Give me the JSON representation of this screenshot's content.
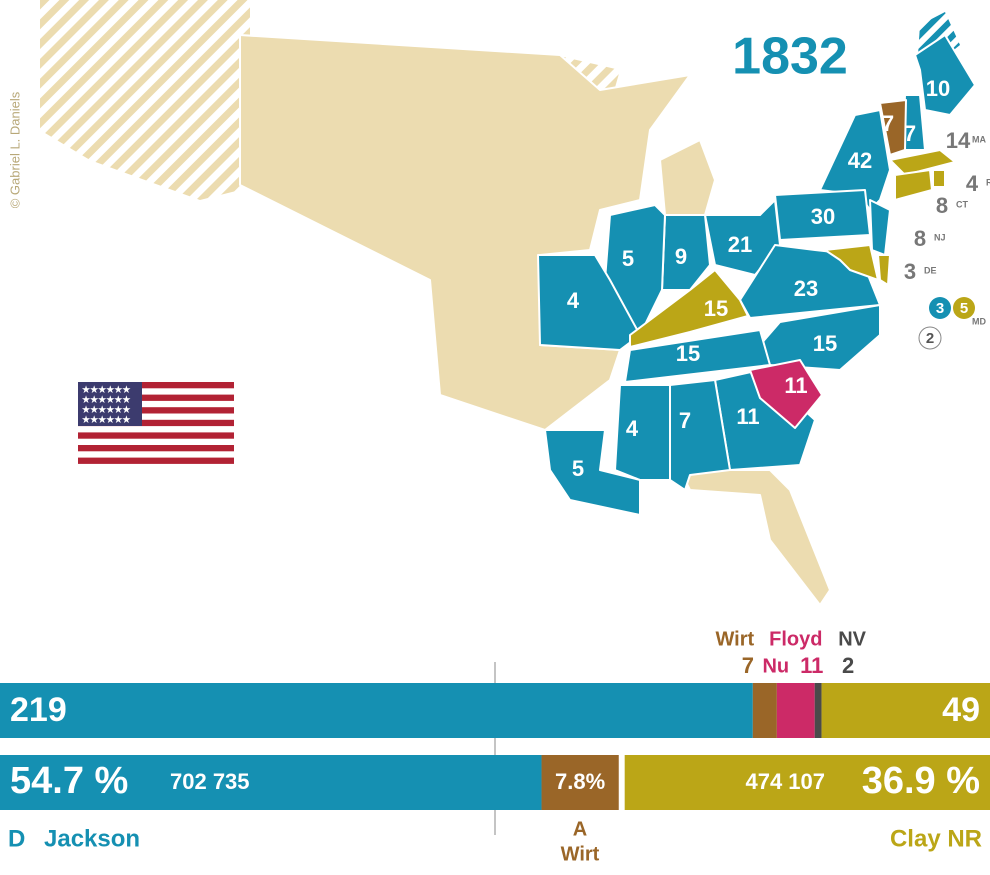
{
  "watermark": "© Gabriel L. Daniels",
  "year": "1832",
  "colors": {
    "jackson": "#1590b2",
    "clay": "#bba617",
    "wirt": "#9a6628",
    "floyd": "#cc2a67",
    "nv": "#4a4a4a",
    "territory": "#ecdcb0"
  },
  "states": [
    {
      "votes": 10,
      "party": "jackson"
    },
    {
      "votes": 7,
      "party": "wirt"
    },
    {
      "votes": 7,
      "party": "jackson"
    },
    {
      "votes": 14,
      "party": "clay",
      "abbr": "MA"
    },
    {
      "votes": 4,
      "party": "clay",
      "abbr": "RI"
    },
    {
      "votes": 8,
      "party": "clay",
      "abbr": "CT"
    },
    {
      "votes": 8,
      "party": "jackson",
      "abbr": "NJ"
    },
    {
      "votes": 3,
      "party": "clay",
      "abbr": "DE"
    },
    {
      "votes": 42,
      "party": "jackson"
    },
    {
      "votes": 30,
      "party": "jackson"
    },
    {
      "votes": 21,
      "party": "jackson"
    },
    {
      "votes": 9,
      "party": "jackson"
    },
    {
      "votes": 5,
      "party": "jackson"
    },
    {
      "votes": 4,
      "party": "jackson"
    },
    {
      "votes": 15,
      "party": "clay"
    },
    {
      "votes": 23,
      "party": "jackson"
    },
    {
      "votes": 15,
      "party": "jackson"
    },
    {
      "votes": 15,
      "party": "jackson"
    },
    {
      "votes": 11,
      "party": "floyd"
    },
    {
      "votes": 11,
      "party": "jackson"
    },
    {
      "votes": 7,
      "party": "jackson"
    },
    {
      "votes": 4,
      "party": "jackson"
    },
    {
      "votes": 5,
      "party": "jackson"
    }
  ],
  "maryland": {
    "abbr": "MD",
    "split": [
      {
        "votes": 3,
        "party": "jackson"
      },
      {
        "votes": 5,
        "party": "clay"
      },
      {
        "votes": 2,
        "party": "nv"
      }
    ]
  },
  "electoral": {
    "segments": [
      {
        "party": "jackson",
        "value": 219
      },
      {
        "party": "wirt",
        "value": 7,
        "name": "Wirt"
      },
      {
        "party": "floyd",
        "value": 11,
        "name": "Floyd",
        "prefix": "Nu"
      },
      {
        "party": "nv",
        "value": 2,
        "name": "NV"
      },
      {
        "party": "clay",
        "value": 49
      }
    ]
  },
  "popular": {
    "segments": [
      {
        "party": "jackson",
        "value": 54.7,
        "label": "54.7 %",
        "votes": "702 735"
      },
      {
        "party": "wirt",
        "value": 7.8,
        "label": "7.8%"
      },
      {
        "party": "clay",
        "value": 36.9,
        "label": "36.9 %",
        "votes": "474 107"
      }
    ]
  },
  "legend": {
    "jackson_party": "D",
    "jackson": "Jackson",
    "wirt_party": "A",
    "wirt": "Wirt",
    "clay": "Clay NR"
  }
}
